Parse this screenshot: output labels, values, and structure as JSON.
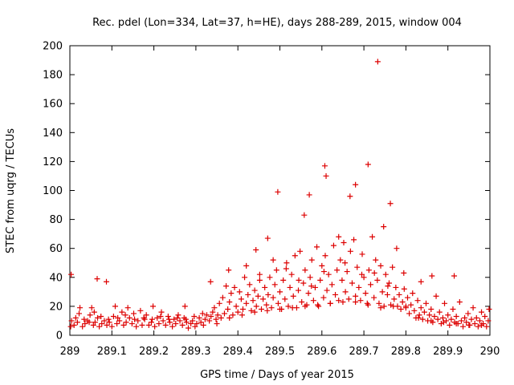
{
  "chart_data": {
    "type": "scatter",
    "title": "Rec. pdel (Lon=334, Lat=37, h=HE), days 288-289, 2015, window 004",
    "xlabel": "GPS time / Days of year 2015",
    "ylabel": "STEC from uqrg / TECUs",
    "xlim": [
      289,
      290
    ],
    "ylim": [
      0,
      200
    ],
    "x_ticks": [
      289,
      289.1,
      289.2,
      289.3,
      289.4,
      289.5,
      289.6,
      289.7,
      289.8,
      289.9,
      290
    ],
    "x_tick_labels": [
      "289",
      "289.1",
      "289.2",
      "289.3",
      "289.4",
      "289.5",
      "289.6",
      "289.7",
      "289.8",
      "289.9",
      "290"
    ],
    "y_ticks": [
      0,
      20,
      40,
      60,
      80,
      100,
      120,
      140,
      160,
      180,
      200
    ],
    "y_tick_labels": [
      "0",
      "20",
      "40",
      "60",
      "80",
      "100",
      "120",
      "140",
      "160",
      "180",
      "200"
    ],
    "marker": "+",
    "marker_color": "#dd0000",
    "grid": false,
    "series": [
      {
        "name": "STEC",
        "points": [
          [
            289.003,
            42
          ],
          [
            289.065,
            39
          ],
          [
            289.087,
            37
          ],
          [
            289.335,
            37
          ],
          [
            289.378,
            45
          ],
          [
            289.443,
            59
          ],
          [
            289.471,
            67
          ],
          [
            289.495,
            99
          ],
          [
            289.558,
            83
          ],
          [
            289.57,
            97
          ],
          [
            289.607,
            117
          ],
          [
            289.61,
            110
          ],
          [
            289.667,
            96
          ],
          [
            289.68,
            104
          ],
          [
            289.71,
            118
          ],
          [
            289.733,
            189
          ],
          [
            289.747,
            75
          ],
          [
            289.763,
            91
          ],
          [
            289.778,
            60
          ],
          [
            289.862,
            41
          ],
          [
            289.915,
            41
          ],
          [
            289.002,
            6
          ],
          [
            289.01,
            7
          ],
          [
            289.018,
            9
          ],
          [
            289.024,
            19
          ],
          [
            289.03,
            6
          ],
          [
            289.036,
            8
          ],
          [
            289.042,
            10
          ],
          [
            289.048,
            14
          ],
          [
            289.052,
            19
          ],
          [
            289.056,
            7
          ],
          [
            289.06,
            9
          ],
          [
            289.066,
            12
          ],
          [
            289.07,
            6
          ],
          [
            289.076,
            8
          ],
          [
            289.082,
            10
          ],
          [
            289.088,
            7
          ],
          [
            289.094,
            9
          ],
          [
            289.1,
            6
          ],
          [
            289.104,
            13
          ],
          [
            289.108,
            20
          ],
          [
            289.112,
            8
          ],
          [
            289.118,
            10
          ],
          [
            289.124,
            16
          ],
          [
            289.128,
            7
          ],
          [
            289.134,
            9
          ],
          [
            289.138,
            19
          ],
          [
            289.142,
            12
          ],
          [
            289.148,
            8
          ],
          [
            289.152,
            15
          ],
          [
            289.158,
            6
          ],
          [
            289.162,
            10
          ],
          [
            289.168,
            17
          ],
          [
            289.172,
            7
          ],
          [
            289.178,
            11
          ],
          [
            289.182,
            14
          ],
          [
            289.188,
            7
          ],
          [
            289.194,
            9
          ],
          [
            289.198,
            20
          ],
          [
            289.202,
            6
          ],
          [
            289.208,
            12
          ],
          [
            289.212,
            8
          ],
          [
            289.218,
            16
          ],
          [
            289.222,
            10
          ],
          [
            289.228,
            7
          ],
          [
            289.234,
            13
          ],
          [
            289.238,
            9
          ],
          [
            289.244,
            6
          ],
          [
            289.248,
            11
          ],
          [
            289.252,
            8
          ],
          [
            289.258,
            14
          ],
          [
            289.262,
            10
          ],
          [
            289.268,
            7
          ],
          [
            289.272,
            12
          ],
          [
            289.278,
            9
          ],
          [
            289.282,
            5
          ],
          [
            289.288,
            8
          ],
          [
            289.292,
            10
          ],
          [
            289.298,
            6
          ],
          [
            289.302,
            8
          ],
          [
            289.308,
            12
          ],
          [
            289.312,
            9
          ],
          [
            289.318,
            7
          ],
          [
            289.322,
            11
          ],
          [
            289.326,
            14
          ],
          [
            289.004,
            10
          ],
          [
            289.014,
            12
          ],
          [
            289.022,
            15
          ],
          [
            289.034,
            11
          ],
          [
            289.046,
            9
          ],
          [
            289.058,
            16
          ],
          [
            289.074,
            13
          ],
          [
            289.092,
            11
          ],
          [
            289.114,
            12
          ],
          [
            289.132,
            14
          ],
          [
            289.154,
            11
          ],
          [
            289.176,
            12
          ],
          [
            289.196,
            11
          ],
          [
            289.216,
            13
          ],
          [
            289.236,
            11
          ],
          [
            289.256,
            12
          ],
          [
            289.276,
            11
          ],
          [
            289.296,
            13
          ],
          [
            289.316,
            15
          ],
          [
            289.274,
            20
          ],
          [
            289.332,
            10
          ],
          [
            289.336,
            13
          ],
          [
            289.34,
            16
          ],
          [
            289.344,
            19
          ],
          [
            289.348,
            11
          ],
          [
            289.352,
            14
          ],
          [
            289.356,
            22
          ],
          [
            289.36,
            12
          ],
          [
            289.364,
            26
          ],
          [
            289.368,
            15
          ],
          [
            289.372,
            34
          ],
          [
            289.376,
            18
          ],
          [
            289.38,
            23
          ],
          [
            289.384,
            29
          ],
          [
            289.388,
            14
          ],
          [
            289.392,
            33
          ],
          [
            289.396,
            20
          ],
          [
            289.4,
            16
          ],
          [
            289.404,
            30
          ],
          [
            289.408,
            25
          ],
          [
            289.412,
            18
          ],
          [
            289.416,
            40
          ],
          [
            289.42,
            22
          ],
          [
            289.424,
            28
          ],
          [
            289.428,
            35
          ],
          [
            289.432,
            17
          ],
          [
            289.436,
            24
          ],
          [
            289.44,
            31
          ],
          [
            289.444,
            20
          ],
          [
            289.448,
            27
          ],
          [
            289.452,
            38
          ],
          [
            289.456,
            18
          ],
          [
            289.46,
            25
          ],
          [
            289.464,
            33
          ],
          [
            289.468,
            21
          ],
          [
            289.472,
            28
          ],
          [
            289.476,
            40
          ],
          [
            289.48,
            19
          ],
          [
            289.484,
            26
          ],
          [
            289.488,
            35
          ],
          [
            289.492,
            45
          ],
          [
            289.496,
            22
          ],
          [
            289.5,
            30
          ],
          [
            289.504,
            18
          ],
          [
            289.508,
            38
          ],
          [
            289.512,
            25
          ],
          [
            289.516,
            50
          ],
          [
            289.52,
            20
          ],
          [
            289.524,
            33
          ],
          [
            289.528,
            42
          ],
          [
            289.532,
            27
          ],
          [
            289.536,
            55
          ],
          [
            289.54,
            19
          ],
          [
            289.544,
            31
          ],
          [
            289.548,
            58
          ],
          [
            289.552,
            23
          ],
          [
            289.556,
            36
          ],
          [
            289.56,
            45
          ],
          [
            289.564,
            21
          ],
          [
            289.568,
            29
          ],
          [
            289.572,
            40
          ],
          [
            289.576,
            52
          ],
          [
            289.58,
            24
          ],
          [
            289.584,
            33
          ],
          [
            289.588,
            61
          ],
          [
            289.592,
            20
          ],
          [
            289.596,
            38
          ],
          [
            289.6,
            48
          ],
          [
            289.604,
            26
          ],
          [
            289.608,
            55
          ],
          [
            289.612,
            31
          ],
          [
            289.616,
            42
          ],
          [
            289.62,
            22
          ],
          [
            289.624,
            35
          ],
          [
            289.628,
            62
          ],
          [
            289.632,
            28
          ],
          [
            289.636,
            45
          ],
          [
            289.64,
            24
          ],
          [
            289.644,
            52
          ],
          [
            289.648,
            38
          ],
          [
            289.652,
            64
          ],
          [
            289.656,
            30
          ],
          [
            289.66,
            44
          ],
          [
            289.664,
            25
          ],
          [
            289.668,
            58
          ],
          [
            289.672,
            36
          ],
          [
            289.676,
            66
          ],
          [
            289.68,
            27
          ],
          [
            289.684,
            47
          ],
          [
            289.688,
            33
          ],
          [
            289.692,
            24
          ],
          [
            289.696,
            56
          ],
          [
            289.7,
            40
          ],
          [
            289.704,
            29
          ],
          [
            289.708,
            22
          ],
          [
            289.712,
            45
          ],
          [
            289.716,
            35
          ],
          [
            289.72,
            68
          ],
          [
            289.724,
            26
          ],
          [
            289.728,
            52
          ],
          [
            289.732,
            38
          ],
          [
            289.736,
            22
          ],
          [
            289.74,
            48
          ],
          [
            289.744,
            30
          ],
          [
            289.748,
            20
          ],
          [
            289.752,
            42
          ],
          [
            289.756,
            28
          ],
          [
            289.76,
            36
          ],
          [
            289.764,
            21
          ],
          [
            289.768,
            47
          ],
          [
            289.772,
            25
          ],
          [
            289.776,
            33
          ],
          [
            289.78,
            20
          ],
          [
            289.784,
            28
          ],
          [
            289.788,
            18
          ],
          [
            289.792,
            23
          ],
          [
            289.796,
            32
          ],
          [
            289.8,
            19
          ],
          [
            289.804,
            26
          ],
          [
            289.808,
            15
          ],
          [
            289.812,
            21
          ],
          [
            289.816,
            29
          ],
          [
            289.82,
            17
          ],
          [
            289.824,
            12
          ],
          [
            289.828,
            24
          ],
          [
            289.832,
            14
          ],
          [
            289.836,
            19
          ],
          [
            289.84,
            11
          ],
          [
            289.844,
            16
          ],
          [
            289.848,
            22
          ],
          [
            289.852,
            10
          ],
          [
            289.856,
            14
          ],
          [
            289.86,
            18
          ],
          [
            289.864,
            9
          ],
          [
            289.868,
            13
          ],
          [
            289.872,
            27
          ],
          [
            289.876,
            11
          ],
          [
            289.88,
            16
          ],
          [
            289.884,
            8
          ],
          [
            289.888,
            12
          ],
          [
            289.892,
            22
          ],
          [
            289.896,
            10
          ],
          [
            289.9,
            14
          ],
          [
            289.904,
            7
          ],
          [
            289.908,
            11
          ],
          [
            289.912,
            18
          ],
          [
            289.916,
            9
          ],
          [
            289.92,
            13
          ],
          [
            289.924,
            8
          ],
          [
            289.928,
            23
          ],
          [
            289.932,
            10
          ],
          [
            289.936,
            6
          ],
          [
            289.94,
            12
          ],
          [
            289.944,
            9
          ],
          [
            289.948,
            15
          ],
          [
            289.952,
            7
          ],
          [
            289.956,
            11
          ],
          [
            289.96,
            19
          ],
          [
            289.964,
            8
          ],
          [
            289.968,
            12
          ],
          [
            289.972,
            6
          ],
          [
            289.976,
            10
          ],
          [
            289.98,
            16
          ],
          [
            289.984,
            8
          ],
          [
            289.988,
            13
          ],
          [
            289.992,
            6
          ],
          [
            289.996,
            10
          ],
          [
            289.998,
            18
          ],
          [
            289.35,
            8
          ],
          [
            289.38,
            12
          ],
          [
            289.41,
            14
          ],
          [
            289.44,
            16
          ],
          [
            289.47,
            17
          ],
          [
            289.5,
            18
          ],
          [
            289.53,
            19
          ],
          [
            289.56,
            20
          ],
          [
            289.59,
            21
          ],
          [
            289.62,
            22
          ],
          [
            289.65,
            23
          ],
          [
            289.68,
            23
          ],
          [
            289.71,
            21
          ],
          [
            289.74,
            19
          ],
          [
            289.77,
            20
          ],
          [
            289.8,
            20
          ],
          [
            289.83,
            12
          ],
          [
            289.86,
            10
          ],
          [
            289.89,
            9
          ],
          [
            289.92,
            8
          ],
          [
            289.95,
            7
          ],
          [
            289.98,
            7
          ],
          [
            289.42,
            48
          ],
          [
            289.452,
            42
          ],
          [
            289.484,
            52
          ],
          [
            289.515,
            46
          ],
          [
            289.545,
            38
          ],
          [
            289.575,
            34
          ],
          [
            289.605,
            44
          ],
          [
            289.64,
            68
          ],
          [
            289.655,
            50
          ],
          [
            289.695,
            42
          ],
          [
            289.725,
            43
          ],
          [
            289.757,
            34
          ],
          [
            289.795,
            43
          ],
          [
            289.836,
            37
          ]
        ]
      }
    ]
  }
}
